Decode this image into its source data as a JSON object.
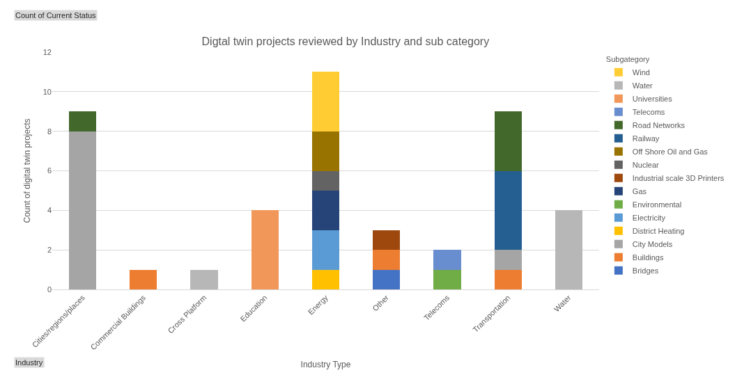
{
  "chart_data": {
    "type": "bar",
    "stacked": true,
    "title": "Digtal twin projects reviewed by Industry and sub category",
    "xlabel": "Industry Type",
    "ylabel": "Count of digital twin projects",
    "legend_title": "Subgategory",
    "legend": "right",
    "grid": "y",
    "ylim": [
      0,
      12
    ],
    "yticks": [
      0,
      2,
      4,
      6,
      8,
      10,
      12
    ],
    "annotations": [
      "Count of Current Status",
      "Industry"
    ],
    "categories": [
      "Cities/regions/places",
      "Commercial Buildings",
      "Cross Platform",
      "Education",
      "Energy",
      "Other",
      "Telecoms",
      "Transportation",
      "Water"
    ],
    "series": [
      {
        "name": "Bridges",
        "color": "#4472c4",
        "values": [
          null,
          null,
          null,
          null,
          null,
          1,
          null,
          null,
          null
        ]
      },
      {
        "name": "Buildings",
        "color": "#ed7d31",
        "values": [
          null,
          1,
          null,
          null,
          null,
          1,
          null,
          1,
          null
        ]
      },
      {
        "name": "City Models",
        "color": "#a5a5a5",
        "values": [
          8,
          null,
          null,
          null,
          null,
          null,
          null,
          1,
          null
        ]
      },
      {
        "name": "District Heating",
        "color": "#ffc000",
        "values": [
          null,
          null,
          null,
          null,
          1,
          null,
          null,
          null,
          null
        ]
      },
      {
        "name": "Electricity",
        "color": "#5b9bd5",
        "values": [
          null,
          null,
          null,
          null,
          2,
          null,
          null,
          null,
          null
        ]
      },
      {
        "name": "Environmental",
        "color": "#70ad47",
        "values": [
          null,
          null,
          null,
          null,
          null,
          null,
          1,
          null,
          null
        ]
      },
      {
        "name": "Gas",
        "color": "#264478",
        "values": [
          null,
          null,
          null,
          null,
          2,
          null,
          null,
          null,
          null
        ]
      },
      {
        "name": "Industrial scale 3D Printers",
        "color": "#9e480e",
        "values": [
          null,
          null,
          null,
          null,
          null,
          1,
          null,
          null,
          null
        ]
      },
      {
        "name": "Nuclear",
        "color": "#636363",
        "values": [
          null,
          null,
          null,
          null,
          1,
          null,
          null,
          null,
          null
        ]
      },
      {
        "name": "Off Shore Oil and Gas",
        "color": "#997300",
        "values": [
          null,
          null,
          null,
          null,
          2,
          null,
          null,
          null,
          null
        ]
      },
      {
        "name": "Railway",
        "color": "#255e91",
        "values": [
          null,
          null,
          null,
          null,
          null,
          null,
          null,
          4,
          null
        ]
      },
      {
        "name": "Road Networks",
        "color": "#43682b",
        "values": [
          1,
          null,
          null,
          null,
          null,
          null,
          null,
          3,
          null
        ]
      },
      {
        "name": "Telecoms",
        "color": "#698ed0",
        "values": [
          null,
          null,
          null,
          null,
          null,
          null,
          1,
          null,
          null
        ]
      },
      {
        "name": "Universities",
        "color": "#f1975a",
        "values": [
          null,
          null,
          null,
          4,
          null,
          null,
          null,
          null,
          null
        ]
      },
      {
        "name": "Water",
        "color": "#b7b7b7",
        "values": [
          null,
          null,
          1,
          null,
          null,
          null,
          null,
          null,
          4
        ]
      },
      {
        "name": "Wind",
        "color": "#ffcd33",
        "values": [
          null,
          null,
          null,
          null,
          3,
          null,
          null,
          null,
          null
        ]
      }
    ]
  }
}
